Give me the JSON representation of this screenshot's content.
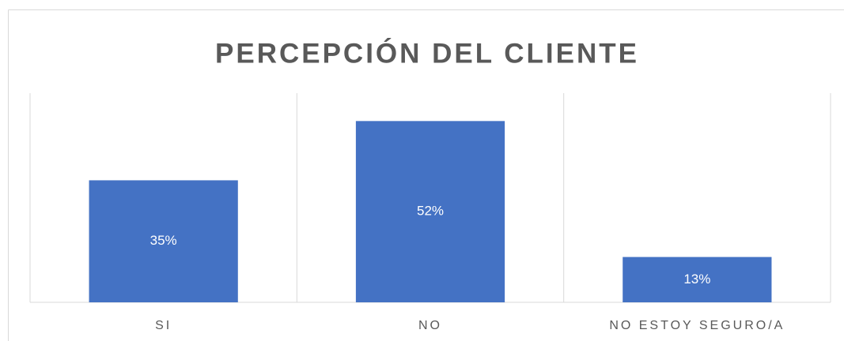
{
  "chart_data": {
    "type": "bar",
    "title": "PERCEPCIÓN DEL CLIENTE",
    "categories": [
      "SI",
      "NO",
      "NO ESTOY SEGURO/A"
    ],
    "values": [
      35,
      52,
      13
    ],
    "value_labels": [
      "35%",
      "52%",
      "13%"
    ],
    "color": "#4472c4",
    "ylim": [
      0,
      60
    ]
  }
}
